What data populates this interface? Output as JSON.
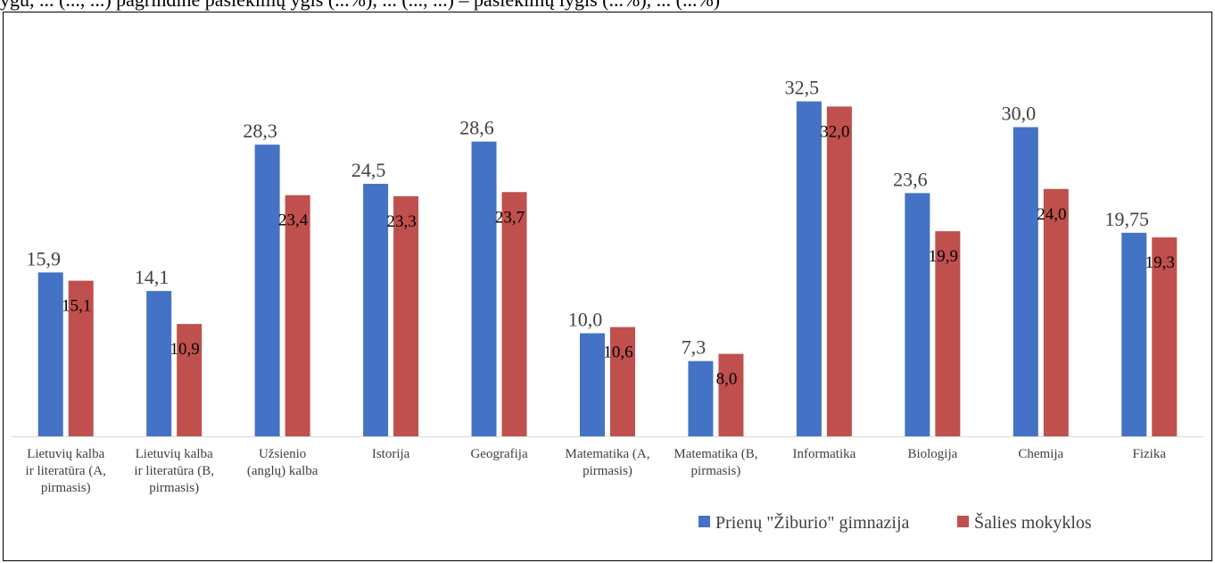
{
  "page_header_fragment": "ygu, ... (..., ...) pagrindinė pasiekimų ygis (...%), ... (..., ...) – pasiekimų lygis (...%), ... (...%)",
  "chart_data": {
    "type": "bar",
    "categories": [
      [
        "Lietuvių kalba",
        "ir literatūra (A,",
        "pirmasis)"
      ],
      [
        "Lietuvių kalba",
        "ir literatūra (B,",
        "pirmasis)"
      ],
      [
        "Užsienio",
        "(anglų) kalba"
      ],
      [
        "Istorija"
      ],
      [
        "Geografija"
      ],
      [
        "Matematika (A,",
        "pirmasis)"
      ],
      [
        "Matematika (B,",
        "pirmasis)"
      ],
      [
        "Informatika"
      ],
      [
        "Biologija"
      ],
      [
        "Chemija"
      ],
      [
        "Fizika"
      ]
    ],
    "series": [
      {
        "name": "Prienų \"Žiburio\" gimnazija",
        "color": "#4472C4",
        "values": [
          15.9,
          14.1,
          28.3,
          24.5,
          28.6,
          10.0,
          7.3,
          32.5,
          23.6,
          30.0,
          19.75
        ],
        "labels": [
          "15,9",
          "14,1",
          "28,3",
          "24,5",
          "28,6",
          "10,0",
          "7,3",
          "32,5",
          "23,6",
          "30,0",
          "19,75"
        ]
      },
      {
        "name": "Šalies mokyklos",
        "color": "#C0504D",
        "values": [
          15.1,
          10.9,
          23.4,
          23.3,
          23.7,
          10.6,
          8.0,
          32.0,
          19.9,
          24.0,
          19.3
        ],
        "labels": [
          "15,1",
          "10,9",
          "23,4",
          "23,3",
          "23,7",
          "10,6",
          "8,0",
          "32,0",
          "19,9",
          "24,0",
          "19,3"
        ]
      }
    ],
    "ylim": [
      0,
      35
    ],
    "grid": false,
    "legend_position": "bottom-right",
    "title": "",
    "xlabel": "",
    "ylabel": ""
  }
}
